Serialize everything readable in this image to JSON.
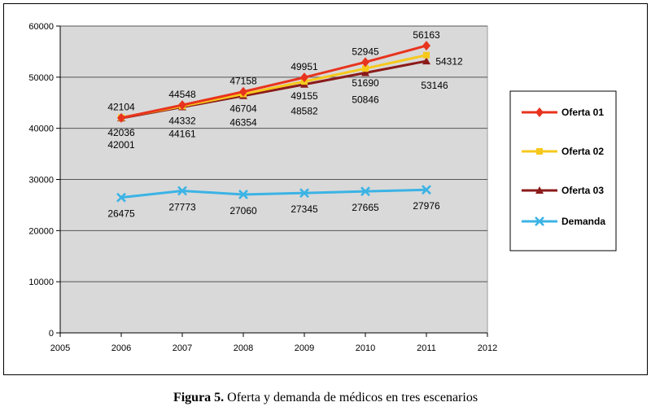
{
  "caption": {
    "prefix": "Figura 5.",
    "text": " Oferta y demanda de médicos  en tres escenarios"
  },
  "chart_data": {
    "type": "line",
    "x": [
      2006,
      2007,
      2008,
      2009,
      2010,
      2011
    ],
    "xlim": [
      2005,
      2012
    ],
    "ylim": [
      0,
      60000
    ],
    "x_ticks": [
      2005,
      2006,
      2007,
      2008,
      2009,
      2010,
      2011,
      2012
    ],
    "y_ticks": [
      0,
      10000,
      20000,
      30000,
      40000,
      50000,
      60000
    ],
    "grid": "horizontal",
    "legend_position": "right",
    "series": [
      {
        "name": "Oferta 01",
        "color": "#E8331E",
        "marker": "diamond",
        "values": [
          42036,
          44548,
          47158,
          49951,
          52945,
          56163
        ]
      },
      {
        "name": "Oferta 02",
        "color": "#F6C81B",
        "marker": "square",
        "values": [
          42104,
          44332,
          46704,
          49155,
          51690,
          54312
        ]
      },
      {
        "name": "Oferta 03",
        "color": "#8B1A1A",
        "marker": "triangle",
        "values": [
          42001,
          44161,
          46354,
          48582,
          50846,
          53146
        ]
      },
      {
        "name": "Demanda",
        "color": "#3BB3E5",
        "marker": "x",
        "values": [
          26475,
          27773,
          27060,
          27345,
          27665,
          27976
        ]
      }
    ],
    "data_labels": [
      {
        "text": "42104",
        "x": 2006,
        "y": 42104,
        "pos": "above"
      },
      {
        "text": "42036",
        "x": 2006,
        "y": 42036,
        "pos": "below1"
      },
      {
        "text": "42001",
        "x": 2006,
        "y": 42001,
        "pos": "below2"
      },
      {
        "text": "44548",
        "x": 2007,
        "y": 44548,
        "pos": "above"
      },
      {
        "text": "44332",
        "x": 2007,
        "y": 44332,
        "pos": "below1"
      },
      {
        "text": "44161",
        "x": 2007,
        "y": 44161,
        "pos": "below2"
      },
      {
        "text": "47158",
        "x": 2008,
        "y": 47158,
        "pos": "above"
      },
      {
        "text": "46704",
        "x": 2008,
        "y": 46704,
        "pos": "below1"
      },
      {
        "text": "46354",
        "x": 2008,
        "y": 46354,
        "pos": "below2"
      },
      {
        "text": "49951",
        "x": 2009,
        "y": 49951,
        "pos": "above"
      },
      {
        "text": "49155",
        "x": 2009,
        "y": 49155,
        "pos": "below1"
      },
      {
        "text": "48582",
        "x": 2009,
        "y": 48582,
        "pos": "below2"
      },
      {
        "text": "52945",
        "x": 2010,
        "y": 52945,
        "pos": "above"
      },
      {
        "text": "51690",
        "x": 2010,
        "y": 51690,
        "pos": "below1"
      },
      {
        "text": "50846",
        "x": 2010,
        "y": 50846,
        "pos": "below2"
      },
      {
        "text": "56163",
        "x": 2011,
        "y": 56163,
        "pos": "above"
      },
      {
        "text": "54312",
        "x": 2011,
        "y": 54312,
        "pos": "right"
      },
      {
        "text": "53146",
        "x": 2011,
        "y": 53146,
        "pos": "below-right"
      },
      {
        "text": "26475",
        "x": 2006,
        "y": 26475,
        "pos": "below"
      },
      {
        "text": "27773",
        "x": 2007,
        "y": 27773,
        "pos": "below"
      },
      {
        "text": "27060",
        "x": 2008,
        "y": 27060,
        "pos": "below"
      },
      {
        "text": "27345",
        "x": 2009,
        "y": 27345,
        "pos": "below"
      },
      {
        "text": "27665",
        "x": 2010,
        "y": 27665,
        "pos": "below"
      },
      {
        "text": "27976",
        "x": 2011,
        "y": 27976,
        "pos": "below"
      }
    ]
  }
}
